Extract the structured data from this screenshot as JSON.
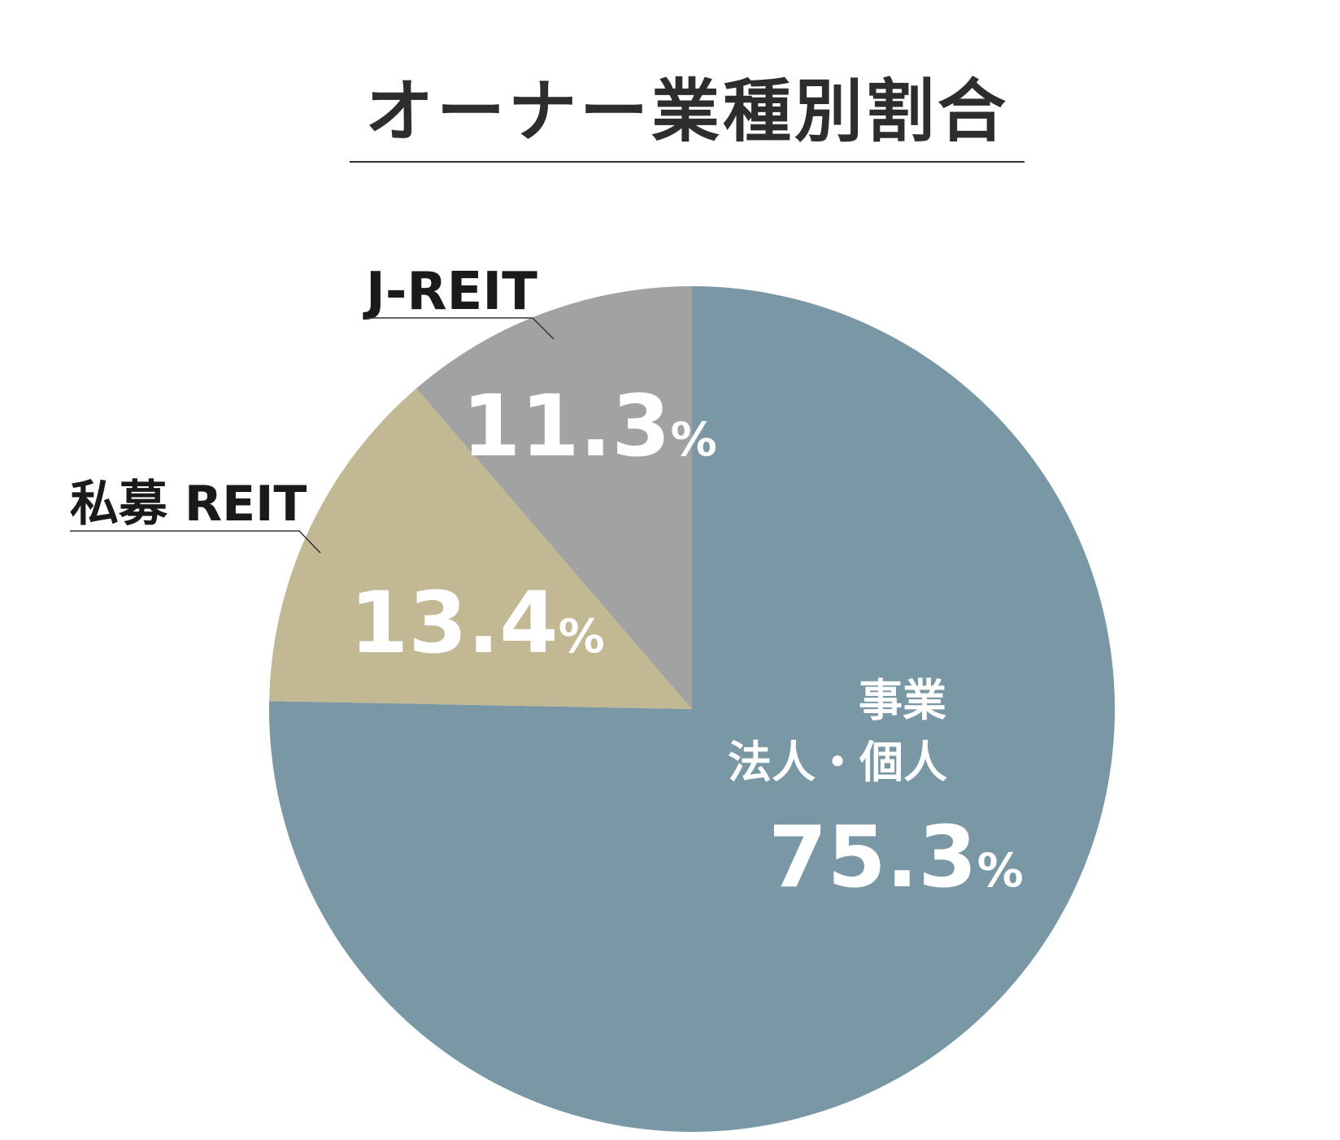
{
  "chart_data": {
    "type": "pie",
    "title": "オーナー業種別割合",
    "slices": [
      {
        "label": "事業法人・個人",
        "label_lines": [
          "事業",
          "法人・個人"
        ],
        "value": 75.3,
        "value_text": "75.3",
        "unit": "%",
        "color": "#7997a4"
      },
      {
        "label": "私募 REIT",
        "label_lines": [
          "私募 REIT"
        ],
        "value": 13.4,
        "value_text": "13.4",
        "unit": "%",
        "color": "#c3b894"
      },
      {
        "label": "J-REIT",
        "label_lines": [
          "J-REIT"
        ],
        "value": 11.3,
        "value_text": "11.3",
        "unit": "%",
        "color": "#a1a2a2"
      }
    ],
    "start": "12 o'clock",
    "direction": "clockwise",
    "legend": "none"
  }
}
